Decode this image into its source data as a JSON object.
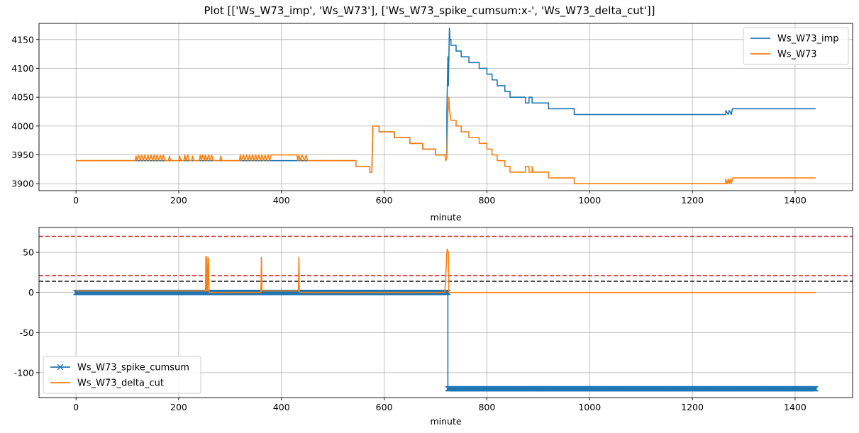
{
  "suptitle": "Plot [['Ws_W73_imp', 'Ws_W73'], ['Ws_W73_spike_cumsum:x-', 'Ws_W73_delta_cut']]",
  "chart_data": [
    {
      "type": "line",
      "xlabel": "minute",
      "ylabel": "",
      "xlim": [
        -72,
        1512
      ],
      "ylim": [
        3888,
        4178
      ],
      "xticks": [
        0,
        200,
        400,
        600,
        800,
        1000,
        1200,
        1400
      ],
      "yticks": [
        3900,
        3950,
        4000,
        4050,
        4100,
        4150
      ],
      "grid": true,
      "legend": "top-right",
      "series": [
        {
          "name": "Ws_W73_imp",
          "color": "#1f77b4",
          "points": [
            [
              0,
              3940
            ],
            [
              545,
              3940
            ],
            [
              545,
              3930
            ],
            [
              572,
              3930
            ],
            [
              572,
              3920
            ],
            [
              576,
              3920
            ],
            [
              578,
              4000
            ],
            [
              590,
              4000
            ],
            [
              590,
              3990
            ],
            [
              620,
              3990
            ],
            [
              620,
              3980
            ],
            [
              650,
              3980
            ],
            [
              650,
              3970
            ],
            [
              675,
              3970
            ],
            [
              675,
              3960
            ],
            [
              700,
              3960
            ],
            [
              700,
              3950
            ],
            [
              718,
              3950
            ],
            [
              722,
              3950
            ],
            [
              722,
              4020
            ],
            [
              724,
              4120
            ],
            [
              725,
              4070
            ],
            [
              727,
              4170
            ],
            [
              728,
              4150
            ],
            [
              730,
              4150
            ],
            [
              730,
              4140
            ],
            [
              740,
              4140
            ],
            [
              740,
              4130
            ],
            [
              750,
              4130
            ],
            [
              750,
              4120
            ],
            [
              765,
              4120
            ],
            [
              765,
              4110
            ],
            [
              785,
              4110
            ],
            [
              785,
              4100
            ],
            [
              800,
              4100
            ],
            [
              800,
              4090
            ],
            [
              810,
              4090
            ],
            [
              810,
              4080
            ],
            [
              820,
              4080
            ],
            [
              820,
              4070
            ],
            [
              835,
              4070
            ],
            [
              835,
              4060
            ],
            [
              845,
              4060
            ],
            [
              845,
              4050
            ],
            [
              875,
              4050
            ],
            [
              875,
              4040
            ],
            [
              882,
              4040
            ],
            [
              882,
              4050
            ],
            [
              888,
              4050
            ],
            [
              888,
              4040
            ],
            [
              920,
              4040
            ],
            [
              920,
              4030
            ],
            [
              970,
              4030
            ],
            [
              970,
              4020
            ],
            [
              1265,
              4020
            ],
            [
              1265,
              4027
            ],
            [
              1270,
              4020
            ],
            [
              1272,
              4027
            ],
            [
              1276,
              4020
            ],
            [
              1278,
              4030
            ],
            [
              1440,
              4030
            ]
          ]
        },
        {
          "name": "Ws_W73",
          "color": "#ff7f0e",
          "points": [
            [
              0,
              3940
            ],
            [
              115,
              3940
            ],
            [
              117,
              3948
            ],
            [
              119,
              3940
            ],
            [
              122,
              3950
            ],
            [
              125,
              3940
            ],
            [
              128,
              3950
            ],
            [
              131,
              3940
            ],
            [
              134,
              3950
            ],
            [
              137,
              3940
            ],
            [
              140,
              3950
            ],
            [
              143,
              3940
            ],
            [
              146,
              3950
            ],
            [
              149,
              3940
            ],
            [
              152,
              3950
            ],
            [
              155,
              3940
            ],
            [
              158,
              3950
            ],
            [
              161,
              3940
            ],
            [
              164,
              3950
            ],
            [
              167,
              3940
            ],
            [
              170,
              3950
            ],
            [
              173,
              3940
            ],
            [
              180,
              3940
            ],
            [
              182,
              3948
            ],
            [
              184,
              3940
            ],
            [
              200,
              3940
            ],
            [
              202,
              3948
            ],
            [
              204,
              3940
            ],
            [
              210,
              3940
            ],
            [
              212,
              3950
            ],
            [
              214,
              3940
            ],
            [
              218,
              3950
            ],
            [
              220,
              3940
            ],
            [
              225,
              3940
            ],
            [
              227,
              3948
            ],
            [
              229,
              3940
            ],
            [
              240,
              3940
            ],
            [
              242,
              3950
            ],
            [
              244,
              3940
            ],
            [
              247,
              3950
            ],
            [
              250,
              3940
            ],
            [
              252,
              3950
            ],
            [
              255,
              3940
            ],
            [
              258,
              3950
            ],
            [
              261,
              3940
            ],
            [
              264,
              3950
            ],
            [
              267,
              3940
            ],
            [
              280,
              3940
            ],
            [
              282,
              3948
            ],
            [
              284,
              3940
            ],
            [
              300,
              3940
            ],
            [
              318,
              3940
            ],
            [
              320,
              3950
            ],
            [
              322,
              3940
            ],
            [
              326,
              3950
            ],
            [
              329,
              3940
            ],
            [
              332,
              3950
            ],
            [
              335,
              3940
            ],
            [
              338,
              3950
            ],
            [
              341,
              3940
            ],
            [
              344,
              3950
            ],
            [
              347,
              3940
            ],
            [
              350,
              3950
            ],
            [
              353,
              3940
            ],
            [
              356,
              3950
            ],
            [
              359,
              3940
            ],
            [
              362,
              3950
            ],
            [
              365,
              3940
            ],
            [
              368,
              3950
            ],
            [
              371,
              3940
            ],
            [
              374,
              3950
            ],
            [
              377,
              3940
            ],
            [
              380,
              3950
            ],
            [
              400,
              3950
            ],
            [
              430,
              3950
            ],
            [
              432,
              3940
            ],
            [
              434,
              3950
            ],
            [
              437,
              3940
            ],
            [
              440,
              3950
            ],
            [
              445,
              3940
            ],
            [
              448,
              3950
            ],
            [
              451,
              3940
            ],
            [
              455,
              3940
            ],
            [
              545,
              3940
            ],
            [
              545,
              3930
            ],
            [
              572,
              3930
            ],
            [
              572,
              3920
            ],
            [
              576,
              3920
            ],
            [
              578,
              4000
            ],
            [
              590,
              4000
            ],
            [
              590,
              3990
            ],
            [
              620,
              3990
            ],
            [
              620,
              3980
            ],
            [
              650,
              3980
            ],
            [
              650,
              3970
            ],
            [
              675,
              3970
            ],
            [
              675,
              3960
            ],
            [
              700,
              3960
            ],
            [
              700,
              3950
            ],
            [
              718,
              3950
            ],
            [
              720,
              3940
            ],
            [
              722,
              3945
            ],
            [
              724,
              4020
            ],
            [
              726,
              4050
            ],
            [
              727,
              4030
            ],
            [
              730,
              4010
            ],
            [
              740,
              4010
            ],
            [
              740,
              4000
            ],
            [
              750,
              4000
            ],
            [
              750,
              3990
            ],
            [
              765,
              3990
            ],
            [
              765,
              3980
            ],
            [
              785,
              3980
            ],
            [
              785,
              3970
            ],
            [
              800,
              3970
            ],
            [
              800,
              3960
            ],
            [
              810,
              3960
            ],
            [
              810,
              3950
            ],
            [
              820,
              3950
            ],
            [
              820,
              3940
            ],
            [
              835,
              3940
            ],
            [
              835,
              3930
            ],
            [
              845,
              3930
            ],
            [
              845,
              3920
            ],
            [
              875,
              3920
            ],
            [
              875,
              3930
            ],
            [
              882,
              3930
            ],
            [
              882,
              3920
            ],
            [
              888,
              3920
            ],
            [
              888,
              3930
            ],
            [
              890,
              3920
            ],
            [
              920,
              3920
            ],
            [
              920,
              3910
            ],
            [
              970,
              3910
            ],
            [
              970,
              3900
            ],
            [
              1265,
              3900
            ],
            [
              1265,
              3908
            ],
            [
              1268,
              3900
            ],
            [
              1270,
              3908
            ],
            [
              1272,
              3900
            ],
            [
              1274,
              3908
            ],
            [
              1276,
              3900
            ],
            [
              1278,
              3910
            ],
            [
              1440,
              3910
            ]
          ]
        }
      ]
    },
    {
      "type": "line",
      "xlabel": "minute",
      "ylabel": "",
      "xlim": [
        -72,
        1512
      ],
      "ylim": [
        -131,
        81
      ],
      "xticks": [
        0,
        200,
        400,
        600,
        800,
        1000,
        1200,
        1400
      ],
      "yticks": [
        -100,
        -50,
        0,
        50
      ],
      "grid": true,
      "legend": "bottom-left",
      "hlines": [
        {
          "y": 70,
          "color": "#d62728"
        },
        {
          "y": 21,
          "color": "#d62728"
        },
        {
          "y": 14,
          "color": "#000000"
        }
      ],
      "series": [
        {
          "name": "Ws_W73_spike_cumsum",
          "color": "#1f77b4",
          "marker": "x",
          "segments": [
            {
              "from": 0,
              "to": 724,
              "y": 0
            },
            {
              "from": 724,
              "to": 1440,
              "y": -120
            }
          ]
        },
        {
          "name": "Ws_W73_delta_cut",
          "color": "#ff7f0e",
          "points": [
            [
              0,
              2
            ],
            [
              252,
              2
            ],
            [
              253,
              45
            ],
            [
              254,
              2
            ],
            [
              255,
              44
            ],
            [
              256,
              2
            ],
            [
              258,
              43
            ],
            [
              259,
              0
            ],
            [
              360,
              0
            ],
            [
              361,
              44
            ],
            [
              362,
              2
            ],
            [
              433,
              2
            ],
            [
              434,
              44
            ],
            [
              435,
              0
            ],
            [
              718,
              0
            ],
            [
              720,
              20
            ],
            [
              722,
              50
            ],
            [
              723,
              54
            ],
            [
              725,
              50
            ],
            [
              726,
              0
            ],
            [
              1440,
              0
            ]
          ]
        }
      ]
    }
  ]
}
